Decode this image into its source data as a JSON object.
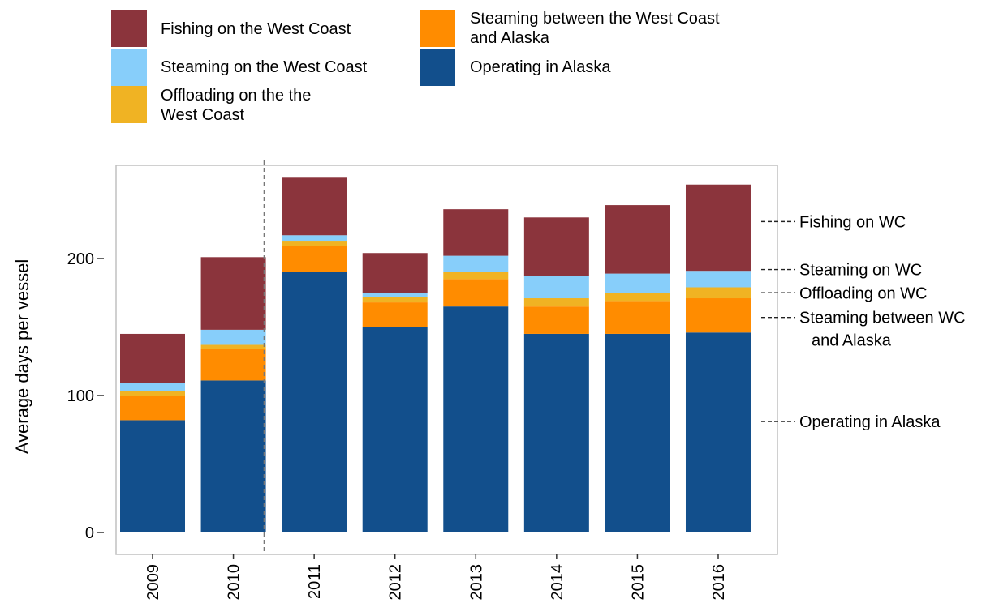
{
  "chart_data": {
    "type": "bar",
    "stacked": true,
    "categories": [
      "2009",
      "2010",
      "2011",
      "2012",
      "2013",
      "2014",
      "2015",
      "2016"
    ],
    "ylabel": "Average days per vessel",
    "xlabel": "",
    "title": "",
    "ylim": [
      0,
      270
    ],
    "yticks": [
      0,
      100,
      200
    ],
    "grid": false,
    "divider_after_category": "2010",
    "series": [
      {
        "name": "Operating in Alaska",
        "color": "#124f8c",
        "values": [
          82,
          111,
          190,
          150,
          165,
          145,
          145,
          146
        ]
      },
      {
        "name": "Steaming between the West Coast and Alaska",
        "color": "#ff8c00",
        "values": [
          18,
          23,
          19,
          18,
          20,
          20,
          24,
          25
        ]
      },
      {
        "name": "Offloading on the West Coast",
        "color": "#f0b323",
        "values": [
          3,
          3,
          4,
          4,
          5,
          6,
          6,
          8
        ]
      },
      {
        "name": "Steaming on the West Coast",
        "color": "#87cefa",
        "values": [
          6,
          11,
          4,
          3,
          12,
          16,
          14,
          12
        ]
      },
      {
        "name": "Fishing on the West Coast",
        "color": "#8b343c",
        "values": [
          36,
          53,
          42,
          29,
          34,
          43,
          50,
          63
        ]
      }
    ],
    "legend": {
      "placement": "top-left",
      "order": [
        "Fishing on the West Coast",
        "Steaming on the West Coast",
        "Offloading on the West Coast",
        "Steaming between the West Coast and Alaska",
        "Operating in Alaska"
      ],
      "labels": {
        "Fishing on the West Coast": [
          "Fishing on the West Coast"
        ],
        "Steaming on the West Coast": [
          "Steaming on the West Coast"
        ],
        "Offloading on the West Coast": [
          "Offloading on the the",
          "West Coast"
        ],
        "Steaming between the West Coast and Alaska": [
          "Steaming between the West Coast",
          "and Alaska"
        ],
        "Operating in Alaska": [
          "Operating in Alaska"
        ]
      }
    },
    "annotations": [
      {
        "lines": [
          "Fishing on WC"
        ],
        "value": 227
      },
      {
        "lines": [
          "Steaming on WC"
        ],
        "value": 192
      },
      {
        "lines": [
          "Offloading on WC"
        ],
        "value": 175
      },
      {
        "lines": [
          "Steaming between WC",
          "and Alaska"
        ],
        "value": 157
      },
      {
        "lines": [
          "Operating in Alaska"
        ],
        "value": 81
      }
    ]
  }
}
